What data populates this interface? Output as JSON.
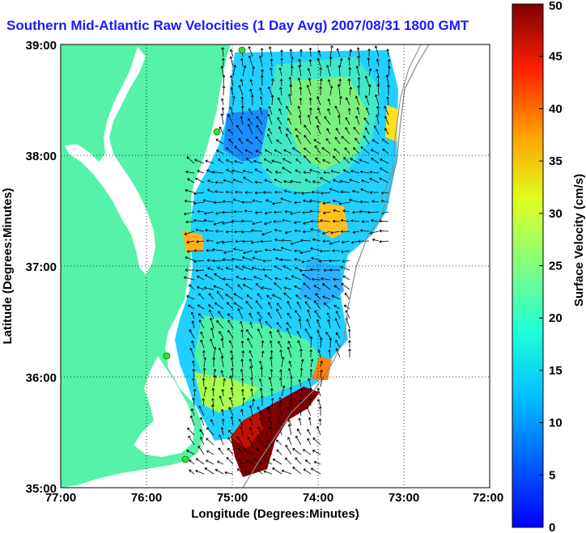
{
  "title": "Southern Mid-Atlantic Raw Velocities (1 Day Avg) 2007/08/31 1800 GMT",
  "x_axis": {
    "label": "Longitude (Degrees:Minutes)",
    "ticks": [
      "77:00",
      "76:00",
      "75:00",
      "74:00",
      "73:00",
      "72:00"
    ]
  },
  "y_axis": {
    "label": "Latitude (Degrees:Minutes)",
    "ticks": [
      "39:00",
      "38:00",
      "37:00",
      "36:00",
      "35:00"
    ]
  },
  "colorbar": {
    "label": "Surface Velocity (cm/s)",
    "ticks": [
      "0",
      "5",
      "10",
      "15",
      "20",
      "25",
      "30",
      "35",
      "40",
      "45",
      "50"
    ],
    "min": 0,
    "max": 50,
    "colormap": "jet"
  },
  "colors": {
    "title": "#1a1aff",
    "land": "#55f2a8",
    "water": "#ffffff",
    "station_marker": "#33dd33"
  },
  "grid": "dotted"
}
